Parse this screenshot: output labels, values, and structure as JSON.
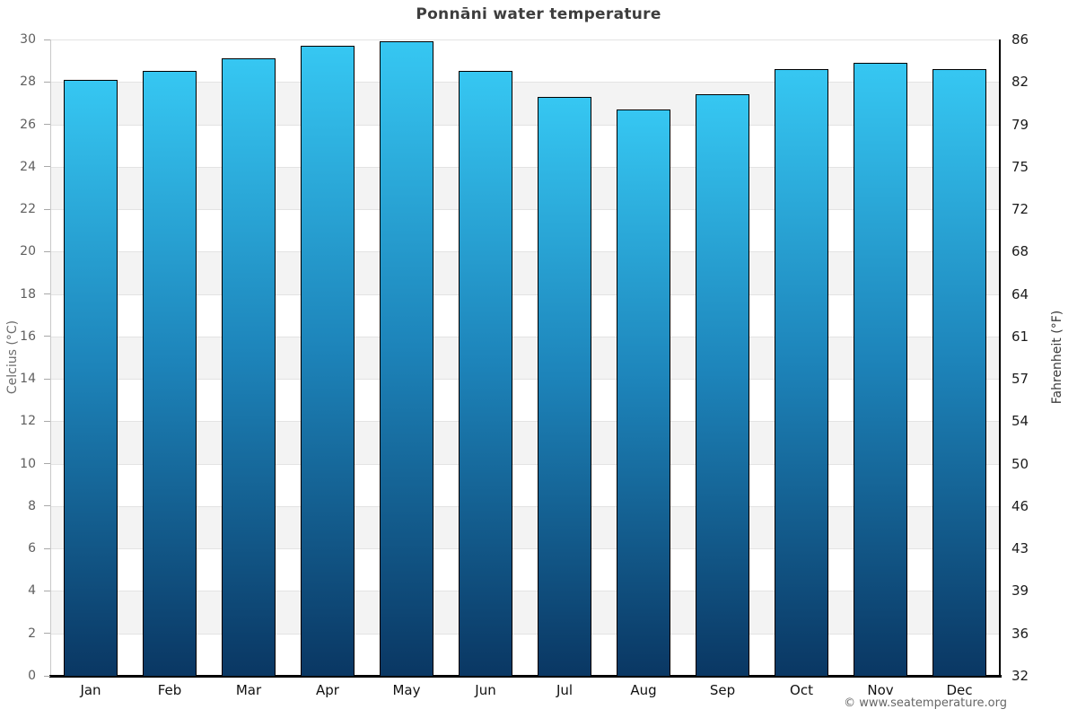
{
  "chart_data": {
    "type": "bar",
    "title": "Ponnāni water temperature",
    "categories": [
      "Jan",
      "Feb",
      "Mar",
      "Apr",
      "May",
      "Jun",
      "Jul",
      "Aug",
      "Sep",
      "Oct",
      "Nov",
      "Dec"
    ],
    "values": [
      28.1,
      28.5,
      29.1,
      29.7,
      29.9,
      28.5,
      27.3,
      26.7,
      27.4,
      28.6,
      28.9,
      28.6
    ],
    "ylabel_left": "Celcius (°C)",
    "ylabel_right": "Fahrenheit (°F)",
    "ylim": [
      0,
      30
    ],
    "ytick_step": 2,
    "yticks_celsius": [
      0,
      2,
      4,
      6,
      8,
      10,
      12,
      14,
      16,
      18,
      20,
      22,
      24,
      26,
      28,
      30
    ],
    "yticks_fahrenheit": [
      "32",
      "36",
      "39",
      "43",
      "46",
      "50",
      "54",
      "57",
      "61",
      "64",
      "68",
      "72",
      "75",
      "79",
      "82",
      "86"
    ],
    "grid": "horizontal gridlines every 2°C with alternating white/gray bands",
    "legend": "none",
    "colors": {
      "bar_gradient_top": "#36c7f2",
      "bar_gradient_mid": "#1d84ba",
      "bar_gradient_bottom": "#0a3763",
      "bar_border": "#000000",
      "band_gray": "#f3f3f3",
      "band_white": "#ffffff",
      "gridline": "#e3e3e3",
      "axis_left_line": "#c9c9c9",
      "axis_right_line": "#000000",
      "axis_bottom_line": "#000000",
      "title_color": "#3e3e3e"
    }
  },
  "footer": {
    "copyright": "© www.seatemperature.org"
  }
}
